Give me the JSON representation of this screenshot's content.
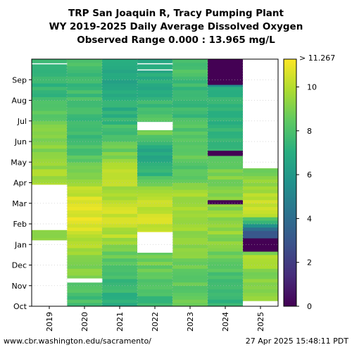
{
  "header": {
    "title_line1": "TRP San Joaquin R, Tracy Pumping Plant",
    "title_line2": "WY 2019-2025 Daily Average Dissolved Oxygen",
    "title_line3": "Observed Range 0.000 : 13.965 mg/L"
  },
  "footer": {
    "source_url": "www.cbr.washington.edu/sacramento/",
    "timestamp": "27 Apr 2025 15:48:11 PDT"
  },
  "chart_data": {
    "type": "heatmap",
    "title": "TRP San Joaquin R, Tracy Pumping Plant WY 2019-2025 Daily Average Dissolved Oxygen",
    "subtitle": "Observed Range 0.000 : 13.965 mg/L",
    "x_categories": [
      "2019",
      "2020",
      "2021",
      "2022",
      "2023",
      "2024",
      "2025"
    ],
    "y_categories": [
      "Oct",
      "Nov",
      "Dec",
      "Jan",
      "Feb",
      "Mar",
      "Apr",
      "May",
      "Jun",
      "Jul",
      "Aug",
      "Sep"
    ],
    "values_by_year": [
      {
        "year": "2019",
        "monthly_mean": [
          null,
          null,
          null,
          9.3,
          null,
          null,
          9.6,
          9.3,
          9.2,
          8.1,
          7.4,
          7.2
        ],
        "gaps": [
          [
            0.0,
            3.2
          ],
          [
            3.7,
            5.9
          ],
          [
            11.75,
            11.8
          ]
        ]
      },
      {
        "year": "2020",
        "monthly_mean": [
          7.8,
          9.0,
          9.6,
          10.4,
          10.8,
          10.3,
          8.9,
          7.9,
          7.6,
          8.0,
          7.6,
          7.8
        ],
        "gaps": [
          [
            1.15,
            1.35
          ]
        ]
      },
      {
        "year": "2021",
        "monthly_mean": [
          7.2,
          7.8,
          8.6,
          10.0,
          10.5,
          9.7,
          10.2,
          8.8,
          7.8,
          7.2,
          6.8,
          6.7
        ],
        "gaps": []
      },
      {
        "year": "2022",
        "monthly_mean": [
          7.6,
          8.5,
          8.9,
          null,
          10.4,
          10.2,
          7.2,
          6.6,
          8.9,
          7.8,
          7.0,
          6.9
        ],
        "gaps": [
          [
            2.6,
            3.6
          ],
          [
            8.55,
            8.95
          ],
          [
            11.45,
            11.5
          ],
          [
            11.75,
            11.8
          ]
        ]
      },
      {
        "year": "2023",
        "monthly_mean": [
          8.6,
          8.2,
          9.1,
          9.5,
          9.8,
          9.7,
          8.3,
          8.5,
          8.2,
          7.6,
          7.3,
          8.0
        ],
        "gaps": []
      },
      {
        "year": "2024",
        "monthly_mean": [
          7.4,
          7.9,
          8.8,
          9.3,
          9.4,
          9.2,
          9.0,
          7.6,
          7.2,
          7.1,
          7.3,
          0.0
        ],
        "gaps": []
      },
      {
        "year": "2025",
        "monthly_mean": [
          null,
          9.2,
          9.8,
          2.0,
          10.6,
          10.0,
          8.9,
          7.4,
          null,
          null,
          null,
          null
        ],
        "gaps": [
          [
            0.0,
            0.25
          ],
          [
            6.7,
            12.0
          ]
        ]
      }
    ],
    "anomalies": [
      {
        "year": "2024",
        "from": 10.75,
        "to": 12.0,
        "value": 0.0
      },
      {
        "year": "2024",
        "from": 7.3,
        "to": 7.55,
        "value": 0.0
      },
      {
        "year": "2024",
        "from": 4.95,
        "to": 5.15,
        "value": 0.0
      },
      {
        "year": "2025",
        "from": 2.65,
        "to": 3.3,
        "value": 0.0
      }
    ],
    "colorbar": {
      "range": [
        0,
        11.267
      ],
      "ticks": [
        "0",
        "2",
        "4",
        "6",
        "8",
        "10"
      ],
      "top_label": "> 11.267",
      "colormap": "viridis"
    },
    "grid": true
  }
}
